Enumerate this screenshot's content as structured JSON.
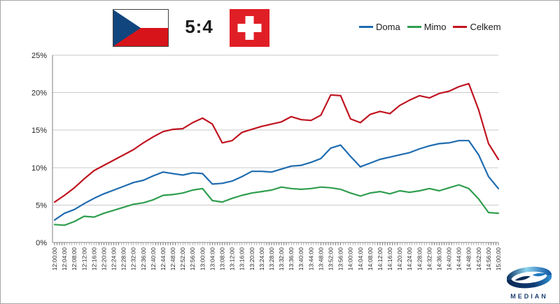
{
  "header": {
    "home_flag": "czech-flag",
    "away_flag": "swiss-flag",
    "score": "5:4"
  },
  "legend": {
    "position": "top-right",
    "items": [
      {
        "label": "Doma",
        "color": "#1f6cb0"
      },
      {
        "label": "Mimo",
        "color": "#2f9e4f"
      },
      {
        "label": "Celkem",
        "color": "#c01420"
      }
    ]
  },
  "chart_data": {
    "type": "line",
    "title": "",
    "xlabel": "",
    "ylabel": "",
    "ylim": [
      0,
      25
    ],
    "yticks": [
      "0%",
      "5%",
      "10%",
      "15%",
      "20%",
      "25%"
    ],
    "grid": true,
    "legend_position": "top-right",
    "categories": [
      "12:00:00",
      "12:04:00",
      "12:08:00",
      "12:12:00",
      "12:16:00",
      "12:20:00",
      "12:24:00",
      "12:28:00",
      "12:32:00",
      "12:36:00",
      "12:40:00",
      "12:44:00",
      "12:48:00",
      "12:52:00",
      "12:56:00",
      "13:00:00",
      "13:04:00",
      "13:08:00",
      "13:12:00",
      "13:16:00",
      "13:20:00",
      "13:24:00",
      "13:28:00",
      "13:32:00",
      "13:36:00",
      "13:40:00",
      "13:44:00",
      "13:48:00",
      "13:52:00",
      "13:56:00",
      "14:00:00",
      "14:04:00",
      "14:08:00",
      "14:12:00",
      "14:16:00",
      "14:20:00",
      "14:24:00",
      "14:28:00",
      "14:32:00",
      "14:36:00",
      "14:40:00",
      "14:44:00",
      "14:48:00",
      "14:52:00",
      "14:56:00",
      "15:00:00"
    ],
    "series": [
      {
        "name": "Doma",
        "color": "#1f6cb0",
        "values": [
          3.0,
          3.9,
          4.4,
          5.2,
          5.9,
          6.5,
          7.0,
          7.5,
          8.0,
          8.3,
          8.9,
          9.4,
          9.2,
          9.0,
          9.3,
          9.2,
          7.8,
          7.9,
          8.2,
          8.8,
          9.5,
          9.5,
          9.4,
          9.8,
          10.2,
          10.3,
          10.7,
          11.2,
          12.6,
          13.0,
          11.5,
          10.1,
          10.6,
          11.1,
          11.4,
          11.7,
          12.0,
          12.5,
          12.9,
          13.2,
          13.3,
          13.6,
          13.6,
          11.7,
          8.8,
          7.2
        ]
      },
      {
        "name": "Mimo",
        "color": "#2f9e4f",
        "values": [
          2.4,
          2.3,
          2.8,
          3.5,
          3.4,
          3.9,
          4.3,
          4.7,
          5.1,
          5.3,
          5.7,
          6.3,
          6.4,
          6.6,
          7.0,
          7.2,
          5.6,
          5.4,
          5.9,
          6.3,
          6.6,
          6.8,
          7.0,
          7.4,
          7.2,
          7.1,
          7.2,
          7.4,
          7.3,
          7.1,
          6.6,
          6.2,
          6.6,
          6.8,
          6.5,
          6.9,
          6.7,
          6.9,
          7.2,
          6.9,
          7.3,
          7.7,
          7.2,
          5.8,
          4.0,
          3.9
        ]
      },
      {
        "name": "Celkem",
        "color": "#c01420",
        "values": [
          5.4,
          6.3,
          7.3,
          8.5,
          9.6,
          10.3,
          11.0,
          11.7,
          12.4,
          13.3,
          14.1,
          14.8,
          15.1,
          15.2,
          16.0,
          16.6,
          15.8,
          13.3,
          13.6,
          14.7,
          15.1,
          15.5,
          15.8,
          16.1,
          16.8,
          16.4,
          16.3,
          17.0,
          19.7,
          19.6,
          16.5,
          16.0,
          17.1,
          17.5,
          17.2,
          18.3,
          19.0,
          19.6,
          19.3,
          19.9,
          20.2,
          20.8,
          21.2,
          17.7,
          13.2,
          11.1
        ]
      }
    ]
  },
  "branding": {
    "logo": "median-logo",
    "name": "MEDIAN"
  },
  "style": {
    "grid_color": "#c9c9c9",
    "axis_color": "#7f7f7f",
    "tick_label_color": "#262626",
    "czech_blue": "#11457e",
    "czech_red": "#d7141a",
    "swiss_red": "#e01e25"
  }
}
